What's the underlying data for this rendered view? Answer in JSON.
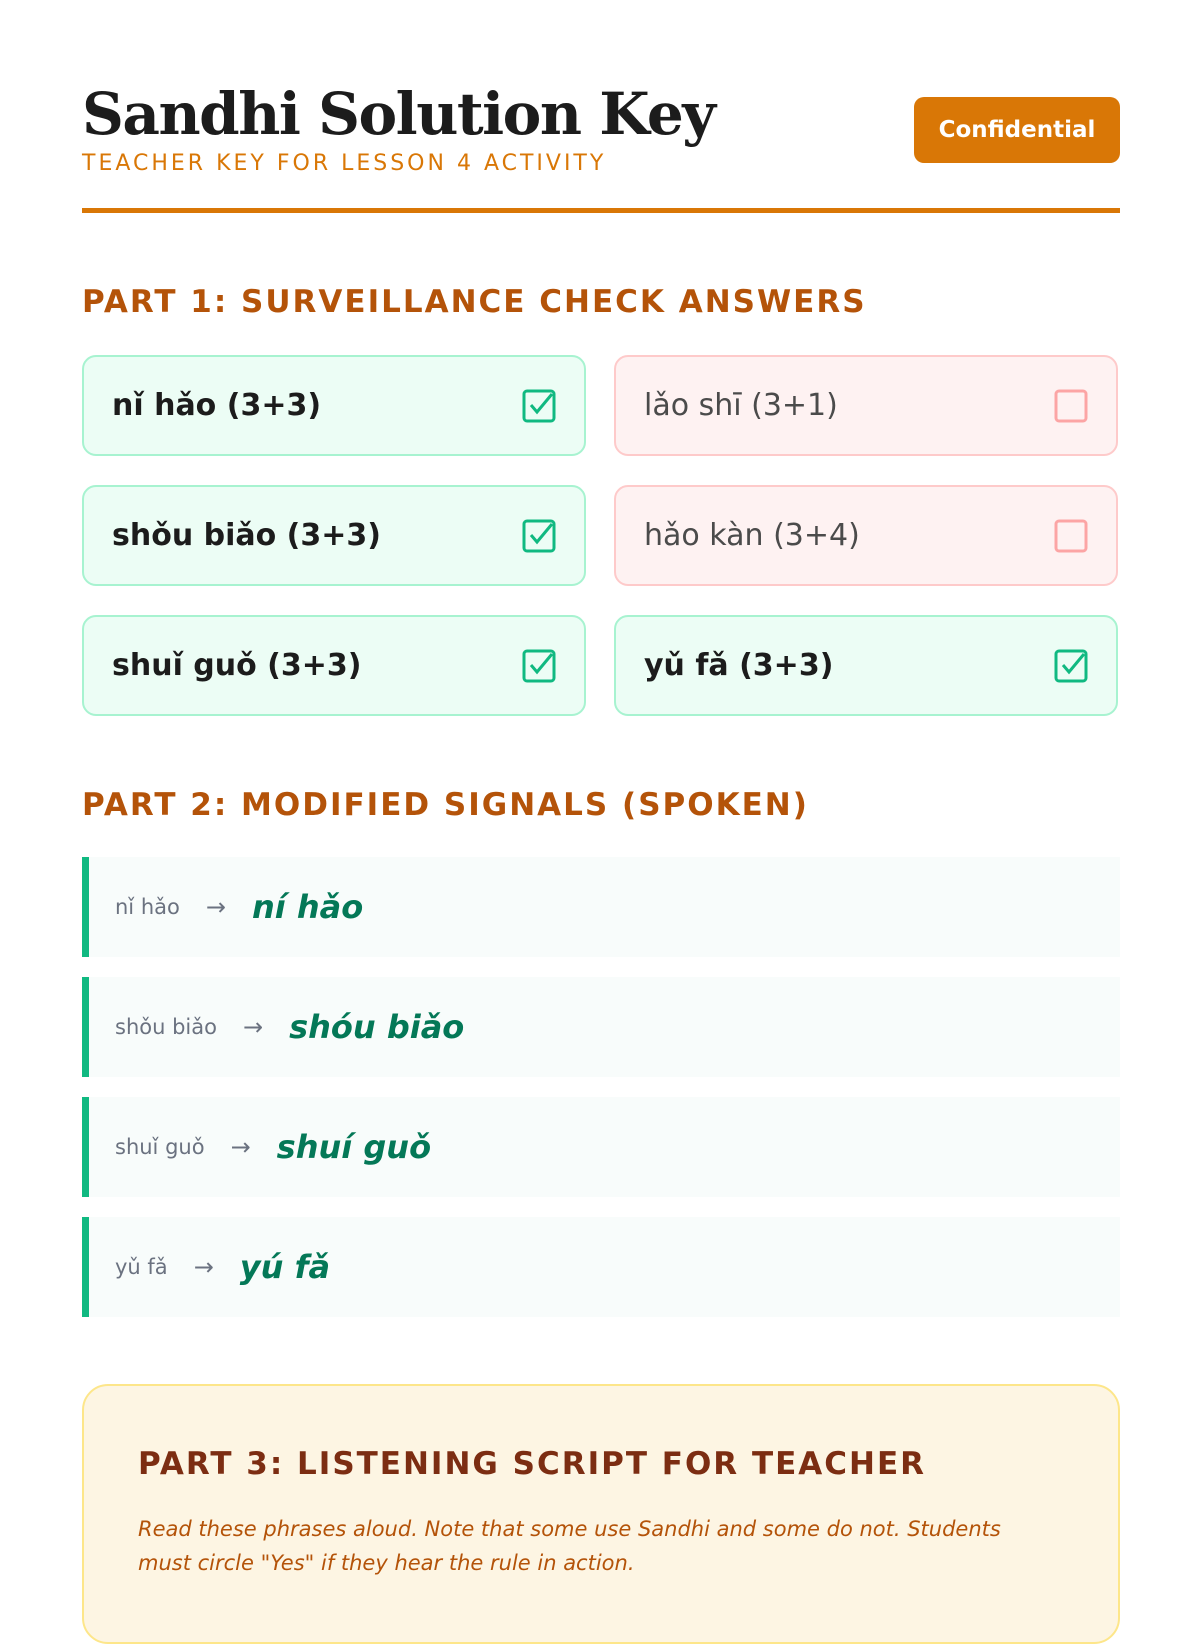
{
  "header": {
    "title": "Sandhi Solution Key",
    "subtitle": "TEACHER KEY FOR LESSON 4 ACTIVITY",
    "badge": "Confidential"
  },
  "colors": {
    "accent": "#d97706",
    "correct": "#10b981",
    "incorrect": "#fecaca"
  },
  "part1": {
    "heading": "PART 1: SURVEILLANCE CHECK ANSWERS",
    "items": [
      {
        "label": "nǐ hǎo (3+3)",
        "checked": true
      },
      {
        "label": "lǎo shī (3+1)",
        "checked": false
      },
      {
        "label": "shǒu biǎo (3+3)",
        "checked": true
      },
      {
        "label": "hǎo kàn (3+4)",
        "checked": false
      },
      {
        "label": "shuǐ guǒ (3+3)",
        "checked": true
      },
      {
        "label": "yǔ fǎ (3+3)",
        "checked": true
      }
    ]
  },
  "part2": {
    "heading": "PART 2: MODIFIED SIGNALS (SPOKEN)",
    "arrow": "→",
    "items": [
      {
        "original": "nǐ hǎo",
        "modified": "ní hǎo"
      },
      {
        "original": "shǒu biǎo",
        "modified": "shóu biǎo"
      },
      {
        "original": "shuǐ guǒ",
        "modified": "shuí guǒ"
      },
      {
        "original": "yǔ fǎ",
        "modified": "yú fǎ"
      }
    ]
  },
  "part3": {
    "heading": "PART 3: LISTENING SCRIPT FOR TEACHER",
    "note": "Read these phrases aloud. Note that some use Sandhi and some do not. Students must circle \"Yes\" if they hear the rule in action."
  }
}
